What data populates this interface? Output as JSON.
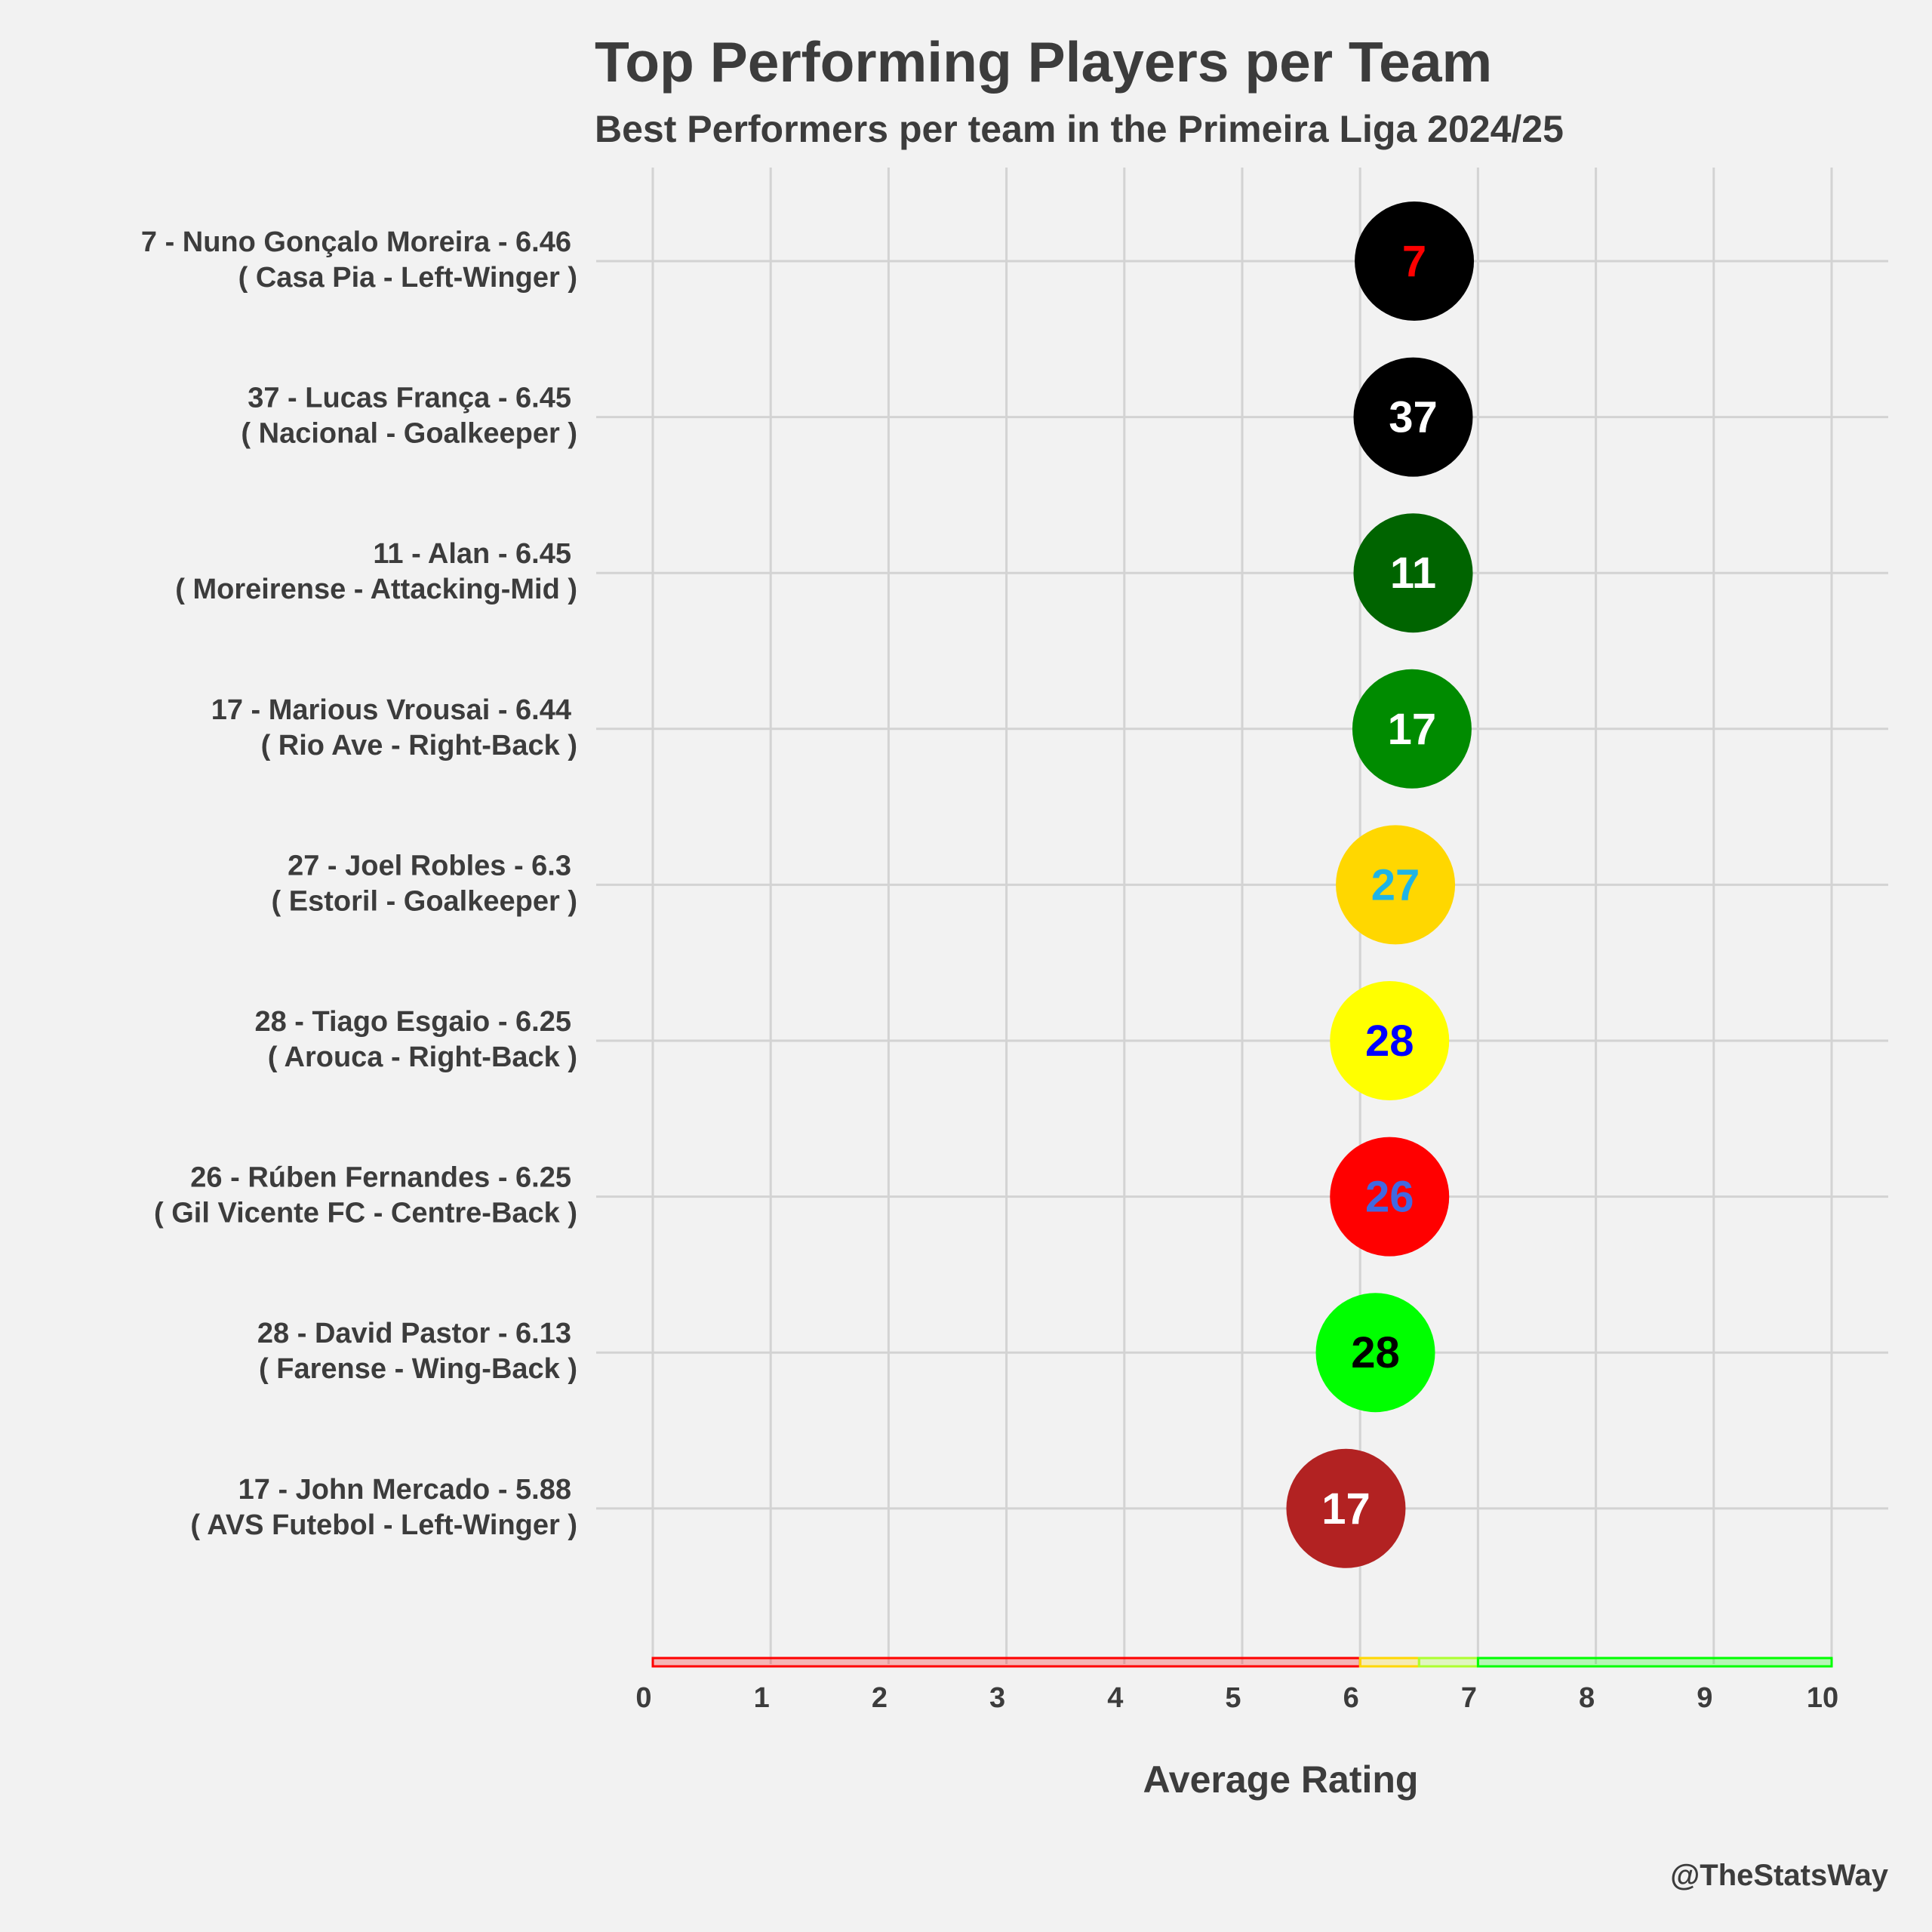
{
  "chart_data": {
    "type": "scatter",
    "title": "Top Performing Players per Team",
    "subtitle": "Best Performers per team in the Primeira Liga 2024/25",
    "xlabel": "Average Rating",
    "ylabel": "",
    "xlim": [
      0,
      10
    ],
    "x_ticks": [
      "0",
      "1",
      "2",
      "3",
      "4",
      "5",
      "6",
      "7",
      "8",
      "9",
      "10"
    ],
    "grid": true,
    "caption": "@TheStatsWay",
    "rating_bands": [
      {
        "from": 0,
        "to": 6,
        "color": "#ff0000"
      },
      {
        "from": 6,
        "to": 6.5,
        "color": "#ffd700"
      },
      {
        "from": 6.5,
        "to": 7,
        "color": "#adff2f"
      },
      {
        "from": 7,
        "to": 10,
        "color": "#00ff00"
      }
    ],
    "points": [
      {
        "label_line1": "7 - Nuno Gonçalo Moreira - 6.46",
        "label_line2": "( Casa Pia - Left-Winger )",
        "shirt": "7",
        "rating": 6.46,
        "fill": "#000000",
        "text_color": "#ff0000"
      },
      {
        "label_line1": "37 - Lucas França - 6.45",
        "label_line2": "( Nacional - Goalkeeper )",
        "shirt": "37",
        "rating": 6.45,
        "fill": "#000000",
        "text_color": "#ffffff"
      },
      {
        "label_line1": "11 - Alan - 6.45",
        "label_line2": "( Moreirense - Attacking-Mid )",
        "shirt": "11",
        "rating": 6.45,
        "fill": "#006400",
        "text_color": "#ffffff"
      },
      {
        "label_line1": "17 - Marious Vrousai - 6.44",
        "label_line2": "( Rio Ave - Right-Back )",
        "shirt": "17",
        "rating": 6.44,
        "fill": "#008b00",
        "text_color": "#ffffff"
      },
      {
        "label_line1": "27 - Joel Robles - 6.3",
        "label_line2": "( Estoril - Goalkeeper )",
        "shirt": "27",
        "rating": 6.3,
        "fill": "#ffd700",
        "text_color": "#1eb4e6"
      },
      {
        "label_line1": "28 - Tiago Esgaio - 6.25",
        "label_line2": "( Arouca - Right-Back )",
        "shirt": "28",
        "rating": 6.25,
        "fill": "#ffff00",
        "text_color": "#0000ff"
      },
      {
        "label_line1": "26 - Rúben Fernandes - 6.25",
        "label_line2": "( Gil Vicente FC - Centre-Back )",
        "shirt": "26",
        "rating": 6.25,
        "fill": "#ff0000",
        "text_color": "#4169e1"
      },
      {
        "label_line1": "28 - David Pastor - 6.13",
        "label_line2": "( Farense - Wing-Back )",
        "shirt": "28",
        "rating": 6.13,
        "fill": "#00ff00",
        "text_color": "#000000"
      },
      {
        "label_line1": "17 - John Mercado - 5.88",
        "label_line2": "( AVS Futebol - Left-Winger )",
        "shirt": "17",
        "rating": 5.88,
        "fill": "#b22222",
        "text_color": "#ffffff"
      }
    ]
  }
}
